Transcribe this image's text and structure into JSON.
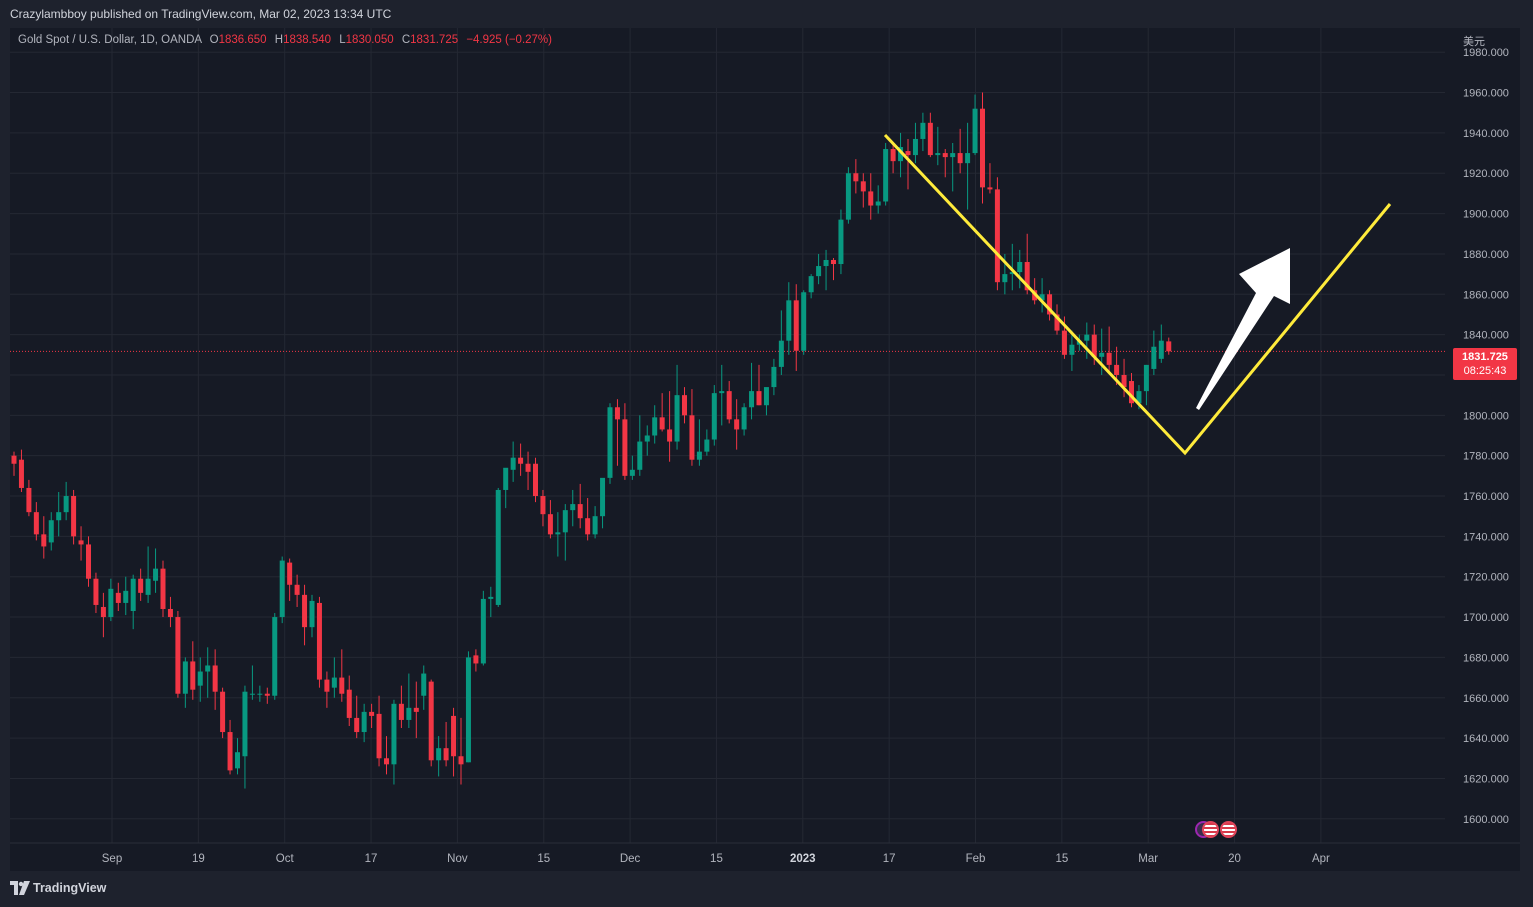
{
  "header": {
    "publisher_line": "Crazylambboy published on TradingView.com, Mar 02, 2023 13:34 UTC"
  },
  "legend": {
    "symbol": "Gold Spot / U.S. Dollar, 1D, OANDA",
    "open_label": "O",
    "open": "1836.650",
    "high_label": "H",
    "high": "1838.540",
    "low_label": "L",
    "low": "1830.050",
    "close_label": "C",
    "close": "1831.725",
    "change": "−4.925 (−0.27%)"
  },
  "price_axis": {
    "currency": "美元",
    "ticks": [
      "1980.000",
      "1960.000",
      "1940.000",
      "1920.000",
      "1900.000",
      "1880.000",
      "1860.000",
      "1840.000",
      "1820.000",
      "1800.000",
      "1780.000",
      "1760.000",
      "1740.000",
      "1720.000",
      "1700.000",
      "1680.000",
      "1660.000",
      "1640.000",
      "1620.000",
      "1600.000"
    ]
  },
  "price_tag": {
    "price": "1831.725",
    "countdown": "08:25:43"
  },
  "time_axis": {
    "ticks": [
      {
        "label": "Sep",
        "bold": false
      },
      {
        "label": "19",
        "bold": false
      },
      {
        "label": "Oct",
        "bold": false
      },
      {
        "label": "17",
        "bold": false
      },
      {
        "label": "Nov",
        "bold": false
      },
      {
        "label": "15",
        "bold": false
      },
      {
        "label": "Dec",
        "bold": false
      },
      {
        "label": "15",
        "bold": false
      },
      {
        "label": "2023",
        "bold": true
      },
      {
        "label": "17",
        "bold": false
      },
      {
        "label": "Feb",
        "bold": false
      },
      {
        "label": "15",
        "bold": false
      },
      {
        "label": "Mar",
        "bold": false
      },
      {
        "label": "20",
        "bold": false
      },
      {
        "label": "Apr",
        "bold": false
      }
    ]
  },
  "footer": {
    "brand": "TradingView"
  },
  "colors": {
    "up": "#089981",
    "down": "#f23645",
    "background": "#161a25",
    "grid": "#242833",
    "drawing_line": "#ffeb3b",
    "arrow": "#ffffff",
    "axis_text": "#b2b5be"
  },
  "chart_data": {
    "type": "candlestick",
    "y_range": [
      1588,
      1992
    ],
    "last_price": 1831.725,
    "candles": [
      {
        "o": 1780,
        "h": 1782,
        "l": 1770,
        "c": 1776
      },
      {
        "o": 1778,
        "h": 1783,
        "l": 1762,
        "c": 1764
      },
      {
        "o": 1764,
        "h": 1768,
        "l": 1750,
        "c": 1752
      },
      {
        "o": 1752,
        "h": 1757,
        "l": 1738,
        "c": 1741
      },
      {
        "o": 1741,
        "h": 1750,
        "l": 1729,
        "c": 1735
      },
      {
        "o": 1737,
        "h": 1752,
        "l": 1733,
        "c": 1748
      },
      {
        "o": 1748,
        "h": 1762,
        "l": 1740,
        "c": 1752
      },
      {
        "o": 1752,
        "h": 1767,
        "l": 1748,
        "c": 1760
      },
      {
        "o": 1760,
        "h": 1763,
        "l": 1736,
        "c": 1740
      },
      {
        "o": 1738,
        "h": 1745,
        "l": 1728,
        "c": 1736
      },
      {
        "o": 1736,
        "h": 1740,
        "l": 1715,
        "c": 1719
      },
      {
        "o": 1719,
        "h": 1722,
        "l": 1702,
        "c": 1706
      },
      {
        "o": 1705,
        "h": 1712,
        "l": 1690,
        "c": 1700
      },
      {
        "o": 1700,
        "h": 1719,
        "l": 1698,
        "c": 1714
      },
      {
        "o": 1712,
        "h": 1717,
        "l": 1703,
        "c": 1707
      },
      {
        "o": 1707,
        "h": 1720,
        "l": 1701,
        "c": 1713
      },
      {
        "o": 1703,
        "h": 1721,
        "l": 1694,
        "c": 1719
      },
      {
        "o": 1719,
        "h": 1724,
        "l": 1708,
        "c": 1712
      },
      {
        "o": 1711,
        "h": 1735,
        "l": 1707,
        "c": 1719
      },
      {
        "o": 1718,
        "h": 1734,
        "l": 1712,
        "c": 1724
      },
      {
        "o": 1724,
        "h": 1728,
        "l": 1700,
        "c": 1704
      },
      {
        "o": 1704,
        "h": 1710,
        "l": 1695,
        "c": 1700
      },
      {
        "o": 1700,
        "h": 1703,
        "l": 1660,
        "c": 1662
      },
      {
        "o": 1662,
        "h": 1680,
        "l": 1655,
        "c": 1678
      },
      {
        "o": 1678,
        "h": 1688,
        "l": 1659,
        "c": 1664
      },
      {
        "o": 1666,
        "h": 1680,
        "l": 1658,
        "c": 1673
      },
      {
        "o": 1673,
        "h": 1685,
        "l": 1660,
        "c": 1676
      },
      {
        "o": 1676,
        "h": 1684,
        "l": 1654,
        "c": 1663
      },
      {
        "o": 1663,
        "h": 1665,
        "l": 1640,
        "c": 1643
      },
      {
        "o": 1643,
        "h": 1649,
        "l": 1622,
        "c": 1624
      },
      {
        "o": 1625,
        "h": 1640,
        "l": 1622,
        "c": 1633
      },
      {
        "o": 1631,
        "h": 1666,
        "l": 1615,
        "c": 1663
      },
      {
        "o": 1662,
        "h": 1676,
        "l": 1659,
        "c": 1662
      },
      {
        "o": 1662,
        "h": 1666,
        "l": 1658,
        "c": 1662
      },
      {
        "o": 1662,
        "h": 1665,
        "l": 1657,
        "c": 1661
      },
      {
        "o": 1661,
        "h": 1702,
        "l": 1659,
        "c": 1700
      },
      {
        "o": 1700,
        "h": 1730,
        "l": 1697,
        "c": 1728
      },
      {
        "o": 1727,
        "h": 1729,
        "l": 1708,
        "c": 1716
      },
      {
        "o": 1716,
        "h": 1721,
        "l": 1705,
        "c": 1711
      },
      {
        "o": 1711,
        "h": 1716,
        "l": 1686,
        "c": 1695
      },
      {
        "o": 1695,
        "h": 1711,
        "l": 1690,
        "c": 1708
      },
      {
        "o": 1707,
        "h": 1710,
        "l": 1665,
        "c": 1669
      },
      {
        "o": 1669,
        "h": 1673,
        "l": 1655,
        "c": 1663
      },
      {
        "o": 1665,
        "h": 1680,
        "l": 1660,
        "c": 1670
      },
      {
        "o": 1670,
        "h": 1684,
        "l": 1658,
        "c": 1662
      },
      {
        "o": 1664,
        "h": 1671,
        "l": 1646,
        "c": 1650
      },
      {
        "o": 1650,
        "h": 1661,
        "l": 1640,
        "c": 1643
      },
      {
        "o": 1643,
        "h": 1657,
        "l": 1638,
        "c": 1653
      },
      {
        "o": 1653,
        "h": 1657,
        "l": 1645,
        "c": 1651
      },
      {
        "o": 1652,
        "h": 1661,
        "l": 1626,
        "c": 1630
      },
      {
        "o": 1630,
        "h": 1641,
        "l": 1622,
        "c": 1627
      },
      {
        "o": 1627,
        "h": 1659,
        "l": 1617,
        "c": 1657
      },
      {
        "o": 1657,
        "h": 1666,
        "l": 1645,
        "c": 1649
      },
      {
        "o": 1649,
        "h": 1672,
        "l": 1645,
        "c": 1655
      },
      {
        "o": 1655,
        "h": 1668,
        "l": 1640,
        "c": 1653
      },
      {
        "o": 1661,
        "h": 1676,
        "l": 1654,
        "c": 1672
      },
      {
        "o": 1668,
        "h": 1669,
        "l": 1626,
        "c": 1629
      },
      {
        "o": 1629,
        "h": 1641,
        "l": 1621,
        "c": 1635
      },
      {
        "o": 1635,
        "h": 1648,
        "l": 1626,
        "c": 1629
      },
      {
        "o": 1651,
        "h": 1655,
        "l": 1621,
        "c": 1631
      },
      {
        "o": 1631,
        "h": 1650,
        "l": 1617,
        "c": 1627
      },
      {
        "o": 1628,
        "h": 1683,
        "l": 1628,
        "c": 1680
      },
      {
        "o": 1681,
        "h": 1684,
        "l": 1673,
        "c": 1677
      },
      {
        "o": 1677,
        "h": 1713,
        "l": 1676,
        "c": 1709
      },
      {
        "o": 1709,
        "h": 1715,
        "l": 1700,
        "c": 1710
      },
      {
        "o": 1706,
        "h": 1764,
        "l": 1705,
        "c": 1763
      },
      {
        "o": 1763,
        "h": 1773,
        "l": 1754,
        "c": 1774
      },
      {
        "o": 1773,
        "h": 1787,
        "l": 1767,
        "c": 1779
      },
      {
        "o": 1779,
        "h": 1786,
        "l": 1770,
        "c": 1776
      },
      {
        "o": 1776,
        "h": 1782,
        "l": 1763,
        "c": 1772
      },
      {
        "o": 1776,
        "h": 1779,
        "l": 1757,
        "c": 1760
      },
      {
        "o": 1760,
        "h": 1763,
        "l": 1745,
        "c": 1751
      },
      {
        "o": 1751,
        "h": 1758,
        "l": 1739,
        "c": 1741
      },
      {
        "o": 1741,
        "h": 1752,
        "l": 1730,
        "c": 1742
      },
      {
        "o": 1742,
        "h": 1756,
        "l": 1728,
        "c": 1753
      },
      {
        "o": 1753,
        "h": 1763,
        "l": 1745,
        "c": 1756
      },
      {
        "o": 1756,
        "h": 1766,
        "l": 1744,
        "c": 1749
      },
      {
        "o": 1749,
        "h": 1759,
        "l": 1738,
        "c": 1741
      },
      {
        "o": 1741,
        "h": 1755,
        "l": 1739,
        "c": 1750
      },
      {
        "o": 1750,
        "h": 1765,
        "l": 1744,
        "c": 1769
      },
      {
        "o": 1769,
        "h": 1806,
        "l": 1766,
        "c": 1804
      },
      {
        "o": 1804,
        "h": 1808,
        "l": 1775,
        "c": 1798
      },
      {
        "o": 1798,
        "h": 1806,
        "l": 1768,
        "c": 1770
      },
      {
        "o": 1770,
        "h": 1780,
        "l": 1768,
        "c": 1773
      },
      {
        "o": 1773,
        "h": 1800,
        "l": 1770,
        "c": 1787
      },
      {
        "o": 1787,
        "h": 1795,
        "l": 1780,
        "c": 1790
      },
      {
        "o": 1790,
        "h": 1805,
        "l": 1786,
        "c": 1799
      },
      {
        "o": 1799,
        "h": 1811,
        "l": 1792,
        "c": 1793
      },
      {
        "o": 1793,
        "h": 1812,
        "l": 1777,
        "c": 1787
      },
      {
        "o": 1787,
        "h": 1825,
        "l": 1783,
        "c": 1810
      },
      {
        "o": 1810,
        "h": 1814,
        "l": 1796,
        "c": 1800
      },
      {
        "o": 1800,
        "h": 1813,
        "l": 1775,
        "c": 1778
      },
      {
        "o": 1778,
        "h": 1798,
        "l": 1775,
        "c": 1782
      },
      {
        "o": 1782,
        "h": 1793,
        "l": 1780,
        "c": 1788
      },
      {
        "o": 1788,
        "h": 1815,
        "l": 1785,
        "c": 1811
      },
      {
        "o": 1811,
        "h": 1825,
        "l": 1795,
        "c": 1812
      },
      {
        "o": 1812,
        "h": 1817,
        "l": 1796,
        "c": 1798
      },
      {
        "o": 1798,
        "h": 1808,
        "l": 1783,
        "c": 1793
      },
      {
        "o": 1793,
        "h": 1806,
        "l": 1790,
        "c": 1804
      },
      {
        "o": 1804,
        "h": 1826,
        "l": 1798,
        "c": 1812
      },
      {
        "o": 1812,
        "h": 1825,
        "l": 1805,
        "c": 1805
      },
      {
        "o": 1805,
        "h": 1813,
        "l": 1800,
        "c": 1814
      },
      {
        "o": 1814,
        "h": 1828,
        "l": 1810,
        "c": 1824
      },
      {
        "o": 1824,
        "h": 1852,
        "l": 1820,
        "c": 1837
      },
      {
        "o": 1837,
        "h": 1866,
        "l": 1830,
        "c": 1857
      },
      {
        "o": 1857,
        "h": 1865,
        "l": 1822,
        "c": 1832
      },
      {
        "o": 1832,
        "h": 1862,
        "l": 1830,
        "c": 1861
      },
      {
        "o": 1861,
        "h": 1870,
        "l": 1858,
        "c": 1869
      },
      {
        "o": 1869,
        "h": 1880,
        "l": 1865,
        "c": 1874
      },
      {
        "o": 1874,
        "h": 1882,
        "l": 1862,
        "c": 1877
      },
      {
        "o": 1877,
        "h": 1878,
        "l": 1867,
        "c": 1875
      },
      {
        "o": 1875,
        "h": 1902,
        "l": 1870,
        "c": 1897
      },
      {
        "o": 1897,
        "h": 1923,
        "l": 1895,
        "c": 1920
      },
      {
        "o": 1920,
        "h": 1927,
        "l": 1910,
        "c": 1916
      },
      {
        "o": 1916,
        "h": 1920,
        "l": 1903,
        "c": 1911
      },
      {
        "o": 1911,
        "h": 1920,
        "l": 1897,
        "c": 1904
      },
      {
        "o": 1904,
        "h": 1914,
        "l": 1900,
        "c": 1906
      },
      {
        "o": 1906,
        "h": 1935,
        "l": 1904,
        "c": 1932
      },
      {
        "o": 1932,
        "h": 1935,
        "l": 1920,
        "c": 1926
      },
      {
        "o": 1926,
        "h": 1940,
        "l": 1918,
        "c": 1933
      },
      {
        "o": 1931,
        "h": 1937,
        "l": 1912,
        "c": 1929
      },
      {
        "o": 1929,
        "h": 1945,
        "l": 1925,
        "c": 1937
      },
      {
        "o": 1937,
        "h": 1950,
        "l": 1931,
        "c": 1945
      },
      {
        "o": 1945,
        "h": 1950,
        "l": 1928,
        "c": 1929
      },
      {
        "o": 1929,
        "h": 1943,
        "l": 1924,
        "c": 1930
      },
      {
        "o": 1930,
        "h": 1932,
        "l": 1918,
        "c": 1928
      },
      {
        "o": 1928,
        "h": 1935,
        "l": 1911,
        "c": 1930
      },
      {
        "o": 1930,
        "h": 1942,
        "l": 1920,
        "c": 1925
      },
      {
        "o": 1925,
        "h": 1945,
        "l": 1902,
        "c": 1930
      },
      {
        "o": 1930,
        "h": 1959,
        "l": 1929,
        "c": 1952
      },
      {
        "o": 1952,
        "h": 1960,
        "l": 1905,
        "c": 1913
      },
      {
        "o": 1913,
        "h": 1925,
        "l": 1910,
        "c": 1912
      },
      {
        "o": 1912,
        "h": 1918,
        "l": 1862,
        "c": 1866
      },
      {
        "o": 1866,
        "h": 1880,
        "l": 1860,
        "c": 1870
      },
      {
        "o": 1870,
        "h": 1885,
        "l": 1862,
        "c": 1871
      },
      {
        "o": 1871,
        "h": 1882,
        "l": 1863,
        "c": 1876
      },
      {
        "o": 1876,
        "h": 1890,
        "l": 1860,
        "c": 1862
      },
      {
        "o": 1862,
        "h": 1868,
        "l": 1855,
        "c": 1857
      },
      {
        "o": 1857,
        "h": 1868,
        "l": 1851,
        "c": 1860
      },
      {
        "o": 1860,
        "h": 1862,
        "l": 1847,
        "c": 1850
      },
      {
        "o": 1850,
        "h": 1855,
        "l": 1840,
        "c": 1842
      },
      {
        "o": 1842,
        "h": 1849,
        "l": 1828,
        "c": 1830
      },
      {
        "o": 1830,
        "h": 1842,
        "l": 1822,
        "c": 1835
      },
      {
        "o": 1835,
        "h": 1840,
        "l": 1832,
        "c": 1837
      },
      {
        "o": 1837,
        "h": 1846,
        "l": 1828,
        "c": 1840
      },
      {
        "o": 1840,
        "h": 1845,
        "l": 1825,
        "c": 1829
      },
      {
        "o": 1829,
        "h": 1843,
        "l": 1820,
        "c": 1831
      },
      {
        "o": 1831,
        "h": 1844,
        "l": 1821,
        "c": 1825
      },
      {
        "o": 1825,
        "h": 1834,
        "l": 1815,
        "c": 1820
      },
      {
        "o": 1820,
        "h": 1828,
        "l": 1809,
        "c": 1814
      },
      {
        "o": 1817,
        "h": 1821,
        "l": 1804,
        "c": 1806
      },
      {
        "o": 1806,
        "h": 1815,
        "l": 1803,
        "c": 1812
      },
      {
        "o": 1812,
        "h": 1825,
        "l": 1805,
        "c": 1825
      },
      {
        "o": 1823,
        "h": 1842,
        "l": 1820,
        "c": 1834
      },
      {
        "o": 1828,
        "h": 1845,
        "l": 1826,
        "c": 1837
      },
      {
        "o": 1836.65,
        "h": 1838.54,
        "l": 1830.05,
        "c": 1831.725
      }
    ]
  }
}
